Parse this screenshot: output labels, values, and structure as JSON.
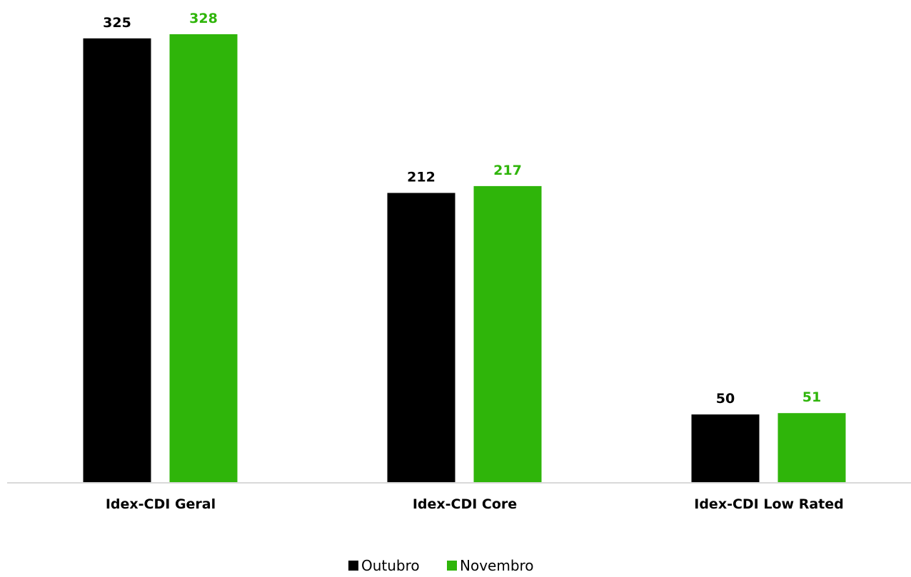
{
  "chart_data": {
    "type": "bar",
    "categories": [
      "Idex-CDI Geral",
      "Idex-CDI Core",
      "Idex-CDI Low Rated"
    ],
    "series": [
      {
        "name": "Outubro",
        "values": [
          325,
          212,
          50
        ],
        "color": "#000000"
      },
      {
        "name": "Novembro",
        "values": [
          328,
          217,
          51
        ],
        "color": "#2fb50a"
      }
    ],
    "title": "",
    "xlabel": "",
    "ylabel": "",
    "ylim": [
      0,
      328
    ],
    "grid": false,
    "legend_position": "bottom-center",
    "axis_color": "#d9d9d9"
  }
}
